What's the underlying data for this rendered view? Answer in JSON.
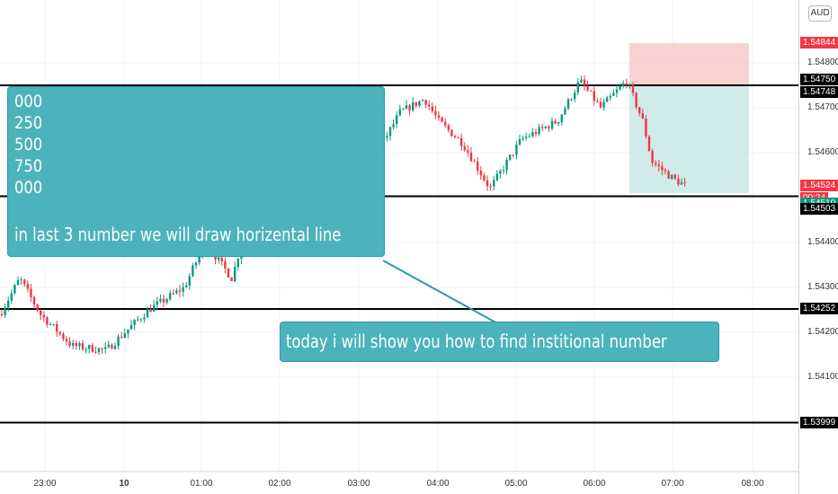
{
  "price_scale": {
    "currency": "AUD",
    "labels": [
      "1.54800",
      "1.54700",
      "1.54600",
      "1.54400",
      "1.54300",
      "1.54200",
      "1.54100"
    ]
  },
  "price_tags": [
    {
      "text": "1.54844",
      "bg": "#f23645",
      "color": "#ffffff"
    },
    {
      "text": "1.54750",
      "bg": "#000000",
      "color": "#ffffff"
    },
    {
      "text": "1.54748",
      "bg": "#000000",
      "color": "#ffffff"
    },
    {
      "text": "1.54524",
      "bg": "#f23645",
      "color": "#ffffff"
    },
    {
      "text": "00:24",
      "bg": "#f23645",
      "color": "#ffffff"
    },
    {
      "text": "1.54510",
      "bg": "#089981",
      "color": "#ffffff"
    },
    {
      "text": "1.54503",
      "bg": "#000000",
      "color": "#ffffff"
    },
    {
      "text": "1.54252",
      "bg": "#000000",
      "color": "#ffffff"
    },
    {
      "text": "1.53999",
      "bg": "#000000",
      "color": "#ffffff"
    }
  ],
  "time_axis": {
    "labels": [
      "23:00",
      "10",
      "01:00",
      "02:00",
      "03:00",
      "04:00",
      "05:00",
      "06:00",
      "07:00",
      "08:00"
    ]
  },
  "horizontal_lines": [
    1.5475,
    1.54503,
    1.54252,
    1.53999
  ],
  "position_tool": {
    "entry": 1.54748,
    "stop": 1.54844,
    "target": 1.5451,
    "stop_color": "#f7c9c9",
    "target_color": "#c9e8e5"
  },
  "annotations": {
    "main_numbers": [
      "000",
      "250",
      "500",
      "750",
      "000"
    ],
    "main_message": "in last 3 number we will draw horizental line",
    "side_message": "today i will show you how to find institional number"
  },
  "colors": {
    "up": "#089981",
    "down": "#f23645",
    "callout": "#4cb3bd"
  }
}
